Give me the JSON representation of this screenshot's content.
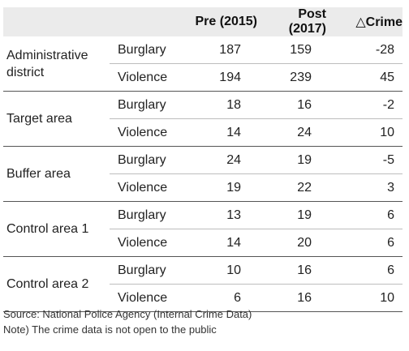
{
  "table": {
    "headers": [
      "",
      "",
      "Pre (2015)",
      "Post (2017)",
      "△Crime"
    ],
    "groups": [
      {
        "area": "Administrative district",
        "rows": [
          {
            "crime": "Burglary",
            "pre": "187",
            "post": "159",
            "delta": "-28"
          },
          {
            "crime": "Violence",
            "pre": "194",
            "post": "239",
            "delta": "45"
          }
        ]
      },
      {
        "area": "Target area",
        "rows": [
          {
            "crime": "Burglary",
            "pre": "18",
            "post": "16",
            "delta": "-2"
          },
          {
            "crime": "Violence",
            "pre": "14",
            "post": "24",
            "delta": "10"
          }
        ]
      },
      {
        "area": "Buffer area",
        "rows": [
          {
            "crime": "Burglary",
            "pre": "24",
            "post": "19",
            "delta": "-5"
          },
          {
            "crime": "Violence",
            "pre": "19",
            "post": "22",
            "delta": "3"
          }
        ]
      },
      {
        "area": "Control area 1",
        "rows": [
          {
            "crime": "Burglary",
            "pre": "13",
            "post": "19",
            "delta": "6"
          },
          {
            "crime": "Violence",
            "pre": "14",
            "post": "20",
            "delta": "6"
          }
        ]
      },
      {
        "area": "Control area 2",
        "rows": [
          {
            "crime": "Burglary",
            "pre": "10",
            "post": "16",
            "delta": "6"
          },
          {
            "crime": "Violence",
            "pre": "6",
            "post": "16",
            "delta": "10"
          }
        ]
      }
    ]
  },
  "notes": {
    "source": "Source: National Police Agency (Internal Crime Data)",
    "note": "Note) The crime data is not open to the public"
  }
}
